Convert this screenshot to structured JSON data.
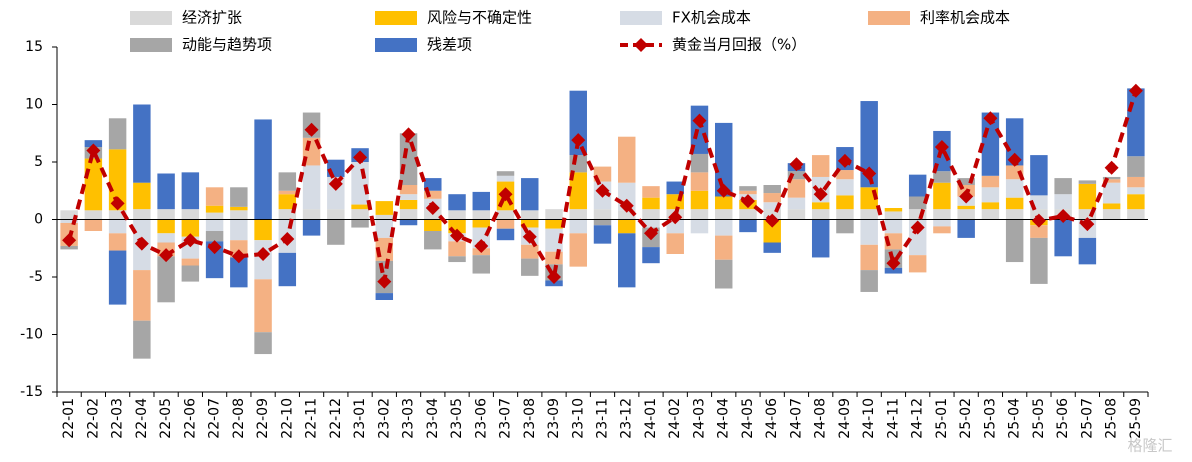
{
  "chart_data": {
    "type": "bar",
    "stacked": true,
    "categories": [
      "22-01",
      "22-02",
      "22-03",
      "22-04",
      "22-05",
      "22-06",
      "22-07",
      "22-08",
      "22-09",
      "22-10",
      "22-11",
      "22-12",
      "23-01",
      "23-02",
      "23-03",
      "23-04",
      "23-05",
      "23-06",
      "23-07",
      "23-08",
      "23-09",
      "23-10",
      "23-11",
      "23-12",
      "24-01",
      "24-02",
      "24-03",
      "24-04",
      "24-05",
      "24-06",
      "24-07",
      "24-08",
      "24-09",
      "24-10",
      "24-11",
      "24-12",
      "25-01",
      "25-02",
      "25-03",
      "25-04",
      "25-05",
      "25-06",
      "25-07",
      "25-08",
      "25-09"
    ],
    "series": [
      {
        "name": "经济扩张",
        "color": "#d9d9d9",
        "values": [
          0.8,
          0.8,
          0.8,
          0.9,
          0.9,
          0.9,
          0.6,
          0.8,
          0,
          0.9,
          0.9,
          0.9,
          0.9,
          0.4,
          0.9,
          0.9,
          0.8,
          0.8,
          0.8,
          0.8,
          0.9,
          0.9,
          0.9,
          0.8,
          0.9,
          0.9,
          0.9,
          0.9,
          0.9,
          0.9,
          0.9,
          0.9,
          0.9,
          0.9,
          0.7,
          0.9,
          0.9,
          0.9,
          0.9,
          0.9,
          0.9,
          0.9,
          0.9,
          0.9,
          0.9
        ]
      },
      {
        "name": "风险与不确定性",
        "color": "#ffc000",
        "values": [
          0,
          4.5,
          5.3,
          2.3,
          -1.2,
          -1.5,
          0.6,
          0.3,
          -1.8,
          1.3,
          0,
          0,
          0.4,
          1.2,
          0.8,
          -1.0,
          -1.2,
          -0.7,
          2.5,
          -0.7,
          -0.8,
          3.2,
          0,
          -1.2,
          1.0,
          1.3,
          1.6,
          1.1,
          0.8,
          -2.0,
          0,
          0.6,
          1.2,
          1.9,
          0.3,
          0,
          2.3,
          0.3,
          0.6,
          1.0,
          -0.5,
          0,
          2.2,
          0.5,
          1.3
        ]
      },
      {
        "name": "FX机会成本",
        "color": "#d6dce5",
        "values": [
          -0.3,
          0,
          -1.2,
          -4.4,
          -0.8,
          -1.9,
          -1.0,
          -1.8,
          -3.4,
          -2.9,
          3.8,
          2.8,
          3.7,
          -1.6,
          0.5,
          0.9,
          -0.7,
          -1.8,
          0.5,
          -1.5,
          -2.0,
          -1.2,
          2.4,
          2.4,
          -0.7,
          -1.2,
          -1.2,
          -1.4,
          0.5,
          0.6,
          1.0,
          2.2,
          1.4,
          -2.2,
          -1.2,
          -3.1,
          -0.6,
          0.8,
          1.3,
          1.6,
          1.2,
          1.3,
          -1.6,
          1.8,
          0.6
        ]
      },
      {
        "name": "利率机会成本",
        "color": "#f4b183",
        "values": [
          -2.0,
          -1.0,
          -1.5,
          -4.4,
          -1.2,
          -0.6,
          1.6,
          -1.5,
          -4.6,
          0.3,
          2.4,
          0,
          0,
          -2.0,
          0.8,
          0.7,
          -1.3,
          -0.6,
          -0.8,
          -1.2,
          -1.1,
          -2.9,
          1.3,
          4.0,
          1.0,
          -1.8,
          1.6,
          -2.1,
          0.3,
          0.8,
          1.6,
          1.9,
          0.8,
          -2.2,
          -1.4,
          -1.5,
          -0.6,
          1.0,
          1.0,
          1.2,
          -1.1,
          0,
          0,
          0.3,
          0.9
        ]
      },
      {
        "name": "动能与趋势项",
        "color": "#a6a6a6",
        "values": [
          -0.3,
          1.0,
          2.7,
          -3.3,
          -4.0,
          -1.4,
          -0.9,
          1.7,
          -1.9,
          1.6,
          2.2,
          -2.2,
          -0.7,
          -2.8,
          4.5,
          -1.6,
          -0.5,
          -1.6,
          0.4,
          -1.5,
          -1.4,
          1.5,
          -0.5,
          0,
          -1.7,
          0,
          1.6,
          -2.5,
          0.4,
          0.7,
          0.7,
          0,
          -1.2,
          -1.9,
          -1.6,
          1.1,
          1.0,
          0.6,
          0,
          -3.7,
          -4.0,
          1.4,
          0.3,
          0.2,
          1.8
        ]
      },
      {
        "name": "残差项",
        "color": "#4472c4",
        "values": [
          0,
          0.6,
          -4.7,
          6.8,
          3.1,
          3.2,
          -3.2,
          -2.6,
          8.7,
          -2.9,
          -1.4,
          1.5,
          1.2,
          -0.6,
          -0.5,
          1.1,
          1.4,
          1.6,
          -1.0,
          2.8,
          -0.5,
          5.6,
          -1.6,
          -4.7,
          -1.4,
          1.1,
          4.2,
          6.4,
          -1.1,
          -0.9,
          0.7,
          -3.3,
          2.0,
          7.5,
          -0.5,
          1.9,
          3.5,
          -1.6,
          5.5,
          4.1,
          3.5,
          -3.2,
          -2.3,
          0,
          5.9
        ]
      }
    ],
    "line_series": {
      "name": "黄金当月回报（%）",
      "color": "#c00000",
      "values": [
        -1.8,
        6.0,
        1.4,
        -2.1,
        -3.1,
        -1.8,
        -2.4,
        -3.2,
        -3.0,
        -1.7,
        7.8,
        3.1,
        5.4,
        -5.4,
        7.4,
        1.0,
        -1.4,
        -2.3,
        2.2,
        -1.5,
        -5.0,
        6.9,
        2.5,
        1.2,
        -1.2,
        0.2,
        8.6,
        2.5,
        1.6,
        -0.1,
        4.8,
        2.2,
        5.1,
        4.0,
        -3.8,
        -0.7,
        6.3,
        2.0,
        8.8,
        5.2,
        -0.1,
        0.3,
        -0.4,
        4.5,
        11.2
      ]
    },
    "ylim": [
      -15,
      15
    ],
    "yticks": [
      -15,
      -10,
      -5,
      0,
      5,
      10,
      15
    ],
    "watermark": "格隆汇"
  }
}
